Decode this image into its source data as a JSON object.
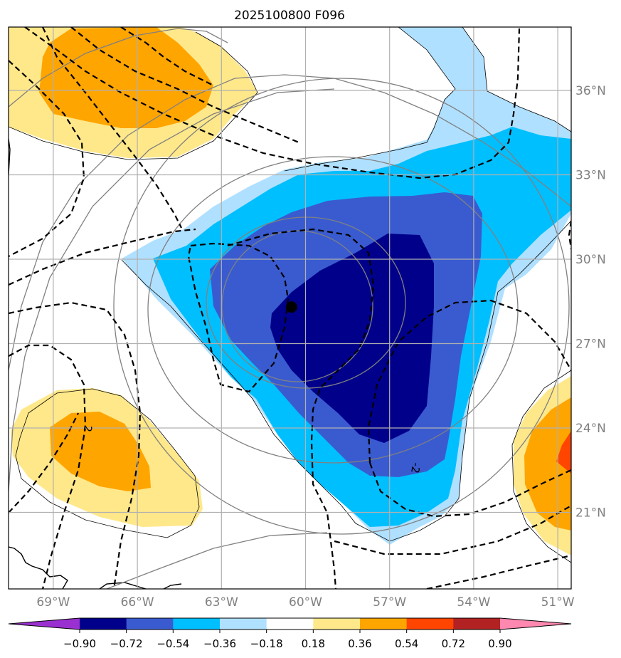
{
  "title": "2025100800 F096",
  "map": {
    "lon_ticks": [
      {
        "value": -69,
        "label": "69°W"
      },
      {
        "value": -66,
        "label": "66°W"
      },
      {
        "value": -63,
        "label": "63°W"
      },
      {
        "value": -60,
        "label": "60°W"
      },
      {
        "value": -57,
        "label": "57°W"
      },
      {
        "value": -54,
        "label": "54°W"
      },
      {
        "value": -51,
        "label": "51°W"
      }
    ],
    "lat_ticks": [
      {
        "value": 36,
        "label": "36°N"
      },
      {
        "value": 33,
        "label": "33°N"
      },
      {
        "value": 30,
        "label": "30°N"
      },
      {
        "value": 27,
        "label": "27°N"
      },
      {
        "value": 24,
        "label": "24°N"
      },
      {
        "value": 21,
        "label": "21°N"
      }
    ],
    "contour_labels": [
      {
        "text": "2",
        "lon": -67.9,
        "lat": 24.0
      },
      {
        "text": "-2",
        "lon": -56.2,
        "lat": 22.6
      }
    ],
    "storm_center": {
      "lon": -60.5,
      "lat": 28.3
    }
  },
  "colorbar": {
    "levels": [
      -0.9,
      -0.72,
      -0.54,
      -0.36,
      -0.18,
      0.18,
      0.36,
      0.54,
      0.72,
      0.9
    ],
    "tick_labels": [
      "−0.90",
      "−0.72",
      "−0.54",
      "−0.36",
      "−0.18",
      "0.18",
      "0.36",
      "0.54",
      "0.72",
      "0.90"
    ],
    "colors": [
      "#9b30d0",
      "#00008b",
      "#3a5bcf",
      "#00bfff",
      "#b0e0ff",
      "#ffffff",
      "#ffe88a",
      "#ffa500",
      "#ff4500",
      "#b22222",
      "#ff88b0"
    ]
  },
  "colors": {
    "grid": "#b0b0b0",
    "gray_contour": "#808080",
    "tick_text": "#808080"
  }
}
